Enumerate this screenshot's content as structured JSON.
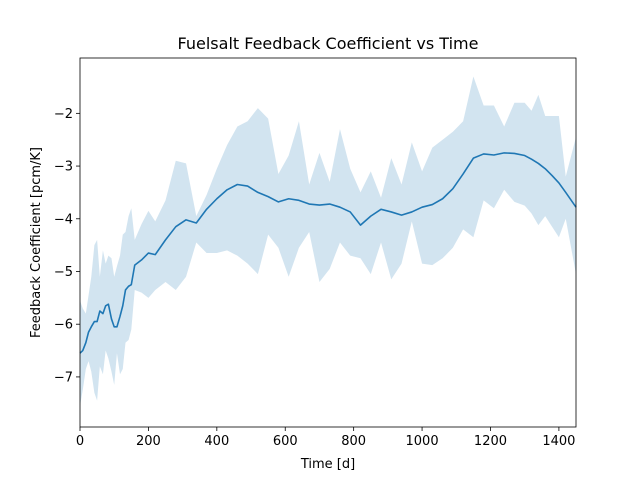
{
  "chart_data": {
    "type": "line",
    "title": "Fuelsalt Feedback Coefficient vs Time",
    "xlabel": "Time [d]",
    "ylabel": "Feedback Coefficient [pcm/K]",
    "xlim": [
      0,
      1450
    ],
    "ylim": [
      -7.95,
      -0.95
    ],
    "xticks": [
      0,
      200,
      400,
      600,
      800,
      1000,
      1200,
      1400
    ],
    "xtick_labels": [
      "0",
      "200",
      "400",
      "600",
      "800",
      "1000",
      "1200",
      "1400"
    ],
    "yticks": [
      -7,
      -6,
      -5,
      -4,
      -3,
      -2
    ],
    "ytick_labels": [
      "−7",
      "−6",
      "−5",
      "−4",
      "−3",
      "−2"
    ],
    "grid": false,
    "legend": "none",
    "colors": {
      "line": "#1f77b4",
      "band": "#1f77b4",
      "band_opacity": 0.2
    },
    "series": [
      {
        "x": [
          0,
          8,
          17,
          25,
          33,
          42,
          50,
          58,
          67,
          75,
          83,
          92,
          100,
          108,
          117,
          125,
          133,
          142,
          150,
          160,
          180,
          200,
          220,
          250,
          280,
          310,
          340,
          370,
          400,
          430,
          460,
          490,
          520,
          550,
          580,
          610,
          640,
          670,
          700,
          730,
          760,
          790,
          820,
          850,
          880,
          910,
          940,
          970,
          1000,
          1030,
          1060,
          1090,
          1120,
          1150,
          1180,
          1210,
          1240,
          1270,
          1300,
          1320,
          1340,
          1360,
          1380,
          1400,
          1420,
          1450
        ],
        "y": [
          -6.55,
          -6.5,
          -6.35,
          -6.15,
          -6.05,
          -5.95,
          -5.95,
          -5.75,
          -5.8,
          -5.65,
          -5.62,
          -5.9,
          -6.05,
          -6.05,
          -5.85,
          -5.65,
          -5.35,
          -5.28,
          -5.25,
          -4.88,
          -4.78,
          -4.65,
          -4.68,
          -4.4,
          -4.15,
          -4.02,
          -4.08,
          -3.82,
          -3.62,
          -3.45,
          -3.35,
          -3.38,
          -3.5,
          -3.58,
          -3.68,
          -3.62,
          -3.65,
          -3.72,
          -3.74,
          -3.72,
          -3.78,
          -3.87,
          -4.12,
          -3.95,
          -3.82,
          -3.87,
          -3.93,
          -3.87,
          -3.78,
          -3.73,
          -3.62,
          -3.43,
          -3.15,
          -2.85,
          -2.77,
          -2.79,
          -2.75,
          -2.76,
          -2.8,
          -2.87,
          -2.95,
          -3.05,
          -3.18,
          -3.32,
          -3.5,
          -3.78
        ],
        "y_upper": [
          -5.55,
          -5.7,
          -5.8,
          -5.45,
          -5.1,
          -4.5,
          -4.4,
          -5.1,
          -4.6,
          -4.85,
          -4.7,
          -4.75,
          -5.1,
          -4.9,
          -4.7,
          -4.3,
          -4.25,
          -3.95,
          -3.8,
          -4.4,
          -4.1,
          -3.85,
          -4.05,
          -3.65,
          -2.9,
          -2.95,
          -3.95,
          -3.55,
          -3.05,
          -2.6,
          -2.25,
          -2.15,
          -1.9,
          -2.1,
          -3.15,
          -2.8,
          -2.15,
          -3.35,
          -2.75,
          -3.3,
          -2.3,
          -3.05,
          -3.5,
          -3.1,
          -3.6,
          -2.85,
          -3.35,
          -2.55,
          -3.1,
          -2.65,
          -2.5,
          -2.35,
          -2.15,
          -1.3,
          -1.85,
          -1.85,
          -2.25,
          -1.8,
          -1.8,
          -1.95,
          -1.65,
          -2.05,
          -2.05,
          -2.05,
          -3.2,
          -2.45
        ],
        "y_lower": [
          -7.55,
          -7.25,
          -6.85,
          -6.7,
          -6.9,
          -7.3,
          -7.45,
          -6.8,
          -6.95,
          -6.5,
          -6.65,
          -6.9,
          -7.15,
          -6.55,
          -6.95,
          -6.85,
          -6.35,
          -6.3,
          -6.1,
          -5.35,
          -5.4,
          -5.5,
          -5.35,
          -5.2,
          -5.35,
          -5.1,
          -4.45,
          -4.65,
          -4.65,
          -4.6,
          -4.7,
          -4.85,
          -5.05,
          -4.3,
          -4.55,
          -5.1,
          -4.55,
          -4.25,
          -5.2,
          -4.95,
          -4.45,
          -4.7,
          -4.75,
          -5.05,
          -4.45,
          -5.15,
          -4.85,
          -4.05,
          -4.85,
          -4.88,
          -4.75,
          -4.55,
          -4.2,
          -4.35,
          -3.65,
          -3.8,
          -3.45,
          -3.68,
          -3.75,
          -3.9,
          -4.12,
          -3.95,
          -4.15,
          -4.35,
          -4.0,
          -5.05
        ]
      }
    ]
  }
}
